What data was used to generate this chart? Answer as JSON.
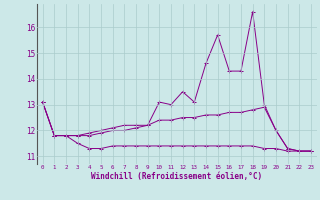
{
  "x_values": [
    0,
    1,
    2,
    3,
    4,
    5,
    6,
    7,
    8,
    9,
    10,
    11,
    12,
    13,
    14,
    15,
    16,
    17,
    18,
    19,
    20,
    21,
    22,
    23
  ],
  "line1": [
    13.1,
    11.8,
    11.8,
    11.5,
    11.3,
    11.3,
    11.4,
    11.4,
    11.4,
    11.4,
    11.4,
    11.4,
    11.4,
    11.4,
    11.4,
    11.4,
    11.4,
    11.4,
    11.4,
    11.3,
    11.3,
    11.2,
    11.2,
    11.2
  ],
  "line2": [
    13.1,
    11.8,
    11.8,
    11.8,
    11.8,
    11.9,
    12.0,
    12.0,
    12.1,
    12.2,
    12.4,
    12.4,
    12.5,
    12.5,
    12.6,
    12.6,
    12.7,
    12.7,
    12.8,
    12.9,
    12.0,
    11.3,
    11.2,
    11.2
  ],
  "line3": [
    13.1,
    11.8,
    11.8,
    11.8,
    11.9,
    12.0,
    12.1,
    12.2,
    12.2,
    12.2,
    13.1,
    13.0,
    13.5,
    13.1,
    14.6,
    15.7,
    14.3,
    14.3,
    16.6,
    13.0,
    12.0,
    11.3,
    11.2,
    11.2
  ],
  "bg_color": "#cce8e8",
  "line_color": "#880088",
  "grid_color": "#aacccc",
  "ylabel_ticks": [
    11,
    12,
    13,
    14,
    15,
    16
  ],
  "xlabel": "Windchill (Refroidissement éolien,°C)",
  "ylim": [
    10.7,
    16.9
  ],
  "xlim": [
    -0.5,
    23.5
  ],
  "x_ticks": [
    0,
    1,
    2,
    3,
    4,
    5,
    6,
    7,
    8,
    9,
    10,
    11,
    12,
    13,
    14,
    15,
    16,
    17,
    18,
    19,
    20,
    21,
    22,
    23
  ]
}
